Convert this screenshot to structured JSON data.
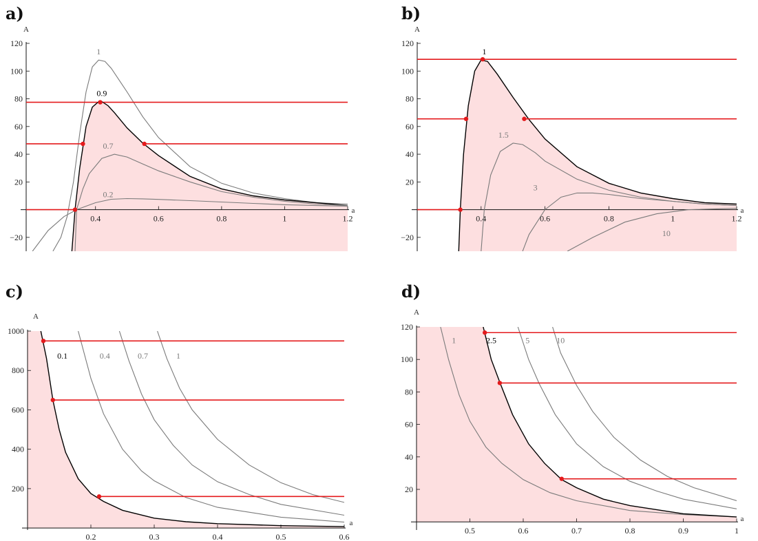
{
  "chart_data": [
    {
      "type": "line",
      "panel_label": "a)",
      "xlabel": "a",
      "ylabel": "A",
      "xlim": [
        0.18,
        1.2
      ],
      "ylim": [
        -30,
        120
      ],
      "xticks": [
        0.4,
        0.6,
        0.8,
        1,
        1.2
      ],
      "xtick_labels": [
        "0.4",
        "0.6",
        "0.8",
        "1",
        "1.2"
      ],
      "yticks": [
        -20,
        20,
        40,
        60,
        80,
        100,
        120
      ],
      "ytick_labels": [
        "−20",
        "20",
        "40",
        "60",
        "80",
        "100",
        "120"
      ],
      "shaded_region_under": "0.9",
      "series": [
        {
          "name": "1",
          "highlight": false,
          "x": [
            0.265,
            0.29,
            0.31,
            0.33,
            0.35,
            0.37,
            0.39,
            0.41,
            0.43,
            0.45,
            0.5,
            0.55,
            0.6,
            0.7,
            0.8,
            0.9,
            1.0,
            1.1,
            1.2
          ],
          "y": [
            -30,
            -20,
            -5,
            20,
            55,
            85,
            103,
            108,
            107,
            102,
            85,
            67,
            52,
            31,
            19,
            12,
            8,
            5,
            4
          ]
        },
        {
          "name": "0.9",
          "highlight": true,
          "x": [
            0.325,
            0.335,
            0.35,
            0.37,
            0.39,
            0.41,
            0.42,
            0.44,
            0.46,
            0.5,
            0.55,
            0.6,
            0.7,
            0.8,
            0.9,
            1.0,
            1.1,
            1.2
          ],
          "y": [
            -30,
            0,
            30,
            60,
            74,
            78,
            78,
            75,
            70,
            59,
            48,
            39,
            24,
            15,
            10,
            7,
            5,
            3
          ]
        },
        {
          "name": "0.7",
          "highlight": false,
          "x": [
            0.335,
            0.34,
            0.36,
            0.38,
            0.42,
            0.46,
            0.5,
            0.55,
            0.6,
            0.7,
            0.8,
            0.9,
            1.0,
            1.1,
            1.2
          ],
          "y": [
            -30,
            0,
            15,
            26,
            37,
            40,
            38,
            33,
            28,
            20,
            13,
            9,
            6,
            4,
            3
          ]
        },
        {
          "name": "0.2",
          "highlight": false,
          "x": [
            0.2,
            0.25,
            0.3,
            0.34,
            0.4,
            0.45,
            0.5,
            0.55,
            0.6,
            0.7,
            0.8,
            0.9,
            1.0,
            1.1,
            1.2
          ],
          "y": [
            -30,
            -15,
            -5,
            0,
            5,
            7.5,
            8,
            7.8,
            7.4,
            6.5,
            5.5,
            4.5,
            3.6,
            3,
            2.5
          ]
        }
      ],
      "curve_labels": [
        {
          "text": "1",
          "x": 0.41,
          "y": 112,
          "color": "#7a7a7a"
        },
        {
          "text": "0.9",
          "x": 0.42,
          "y": 82,
          "color": "#000000"
        },
        {
          "text": "0.7",
          "x": 0.44,
          "y": 44,
          "color": "#7a7a7a"
        },
        {
          "text": "0.2",
          "x": 0.44,
          "y": 9,
          "color": "#7a7a7a"
        }
      ],
      "hlines": [
        {
          "y": 77.5,
          "x_start": 0.18,
          "x_end": 1.2,
          "gap": [
            0.405,
            0.425
          ]
        },
        {
          "y": 47.5,
          "x_start": 0.18,
          "x_end": 1.2,
          "gap": [
            0.36,
            0.555
          ]
        },
        {
          "y": 0,
          "x_start": 0.18,
          "x_end": 0.335,
          "gap": null
        }
      ],
      "points": [
        {
          "x": 0.415,
          "y": 77.5
        },
        {
          "x": 0.36,
          "y": 47.5
        },
        {
          "x": 0.555,
          "y": 47.5
        },
        {
          "x": 0.335,
          "y": 0
        }
      ]
    },
    {
      "type": "line",
      "panel_label": "b)",
      "xlabel": "a",
      "ylabel": "A",
      "xlim": [
        0.2,
        1.2
      ],
      "ylim": [
        -30,
        120
      ],
      "xticks": [
        0.4,
        0.6,
        0.8,
        1,
        1.2
      ],
      "xtick_labels": [
        "0.4",
        "0.6",
        "0.8",
        "1",
        "1.2"
      ],
      "yticks": [
        -20,
        20,
        40,
        60,
        80,
        100,
        120
      ],
      "ytick_labels": [
        "−20",
        "20",
        "40",
        "60",
        "80",
        "100",
        "120"
      ],
      "shaded_region_under": "1",
      "series": [
        {
          "name": "1",
          "highlight": true,
          "x": [
            0.33,
            0.335,
            0.345,
            0.36,
            0.38,
            0.4,
            0.42,
            0.45,
            0.5,
            0.55,
            0.6,
            0.7,
            0.8,
            0.9,
            1.0,
            1.1,
            1.2
          ],
          "y": [
            -30,
            0,
            40,
            75,
            100,
            108,
            107,
            98,
            81,
            65,
            51,
            31,
            19,
            12,
            8,
            5,
            4
          ]
        },
        {
          "name": "1.5",
          "highlight": false,
          "x": [
            0.4,
            0.41,
            0.43,
            0.46,
            0.5,
            0.53,
            0.57,
            0.6,
            0.7,
            0.8,
            0.9,
            1.0,
            1.1,
            1.2
          ],
          "y": [
            -30,
            0,
            25,
            42,
            48,
            47,
            41,
            35,
            22,
            14,
            9,
            6,
            4,
            3
          ]
        },
        {
          "name": "3",
          "highlight": false,
          "x": [
            0.53,
            0.55,
            0.6,
            0.65,
            0.7,
            0.75,
            0.8,
            0.9,
            1.0,
            1.1,
            1.2
          ],
          "y": [
            -30,
            -18,
            0,
            9,
            12,
            12,
            11,
            8,
            6,
            4,
            3
          ]
        },
        {
          "name": "10",
          "highlight": false,
          "x": [
            0.67,
            0.75,
            0.85,
            0.95,
            1.05,
            1.2
          ],
          "y": [
            -30,
            -20,
            -9,
            -3,
            0,
            1
          ]
        }
      ],
      "curve_labels": [
        {
          "text": "1",
          "x": 0.41,
          "y": 112,
          "color": "#000000"
        },
        {
          "text": "1.5",
          "x": 0.47,
          "y": 52,
          "color": "#7a7a7a"
        },
        {
          "text": "3",
          "x": 0.57,
          "y": 14,
          "color": "#7a7a7a"
        },
        {
          "text": "10",
          "x": 0.98,
          "y": -19,
          "color": "#7a7a7a"
        }
      ],
      "hlines": [
        {
          "y": 108.5,
          "x_start": 0.2,
          "x_end": 1.2,
          "gap": null
        },
        {
          "y": 65.5,
          "x_start": 0.2,
          "x_end": 1.2,
          "gap": [
            0.353,
            0.535
          ]
        },
        {
          "y": 0,
          "x_start": 0.2,
          "x_end": 0.335,
          "gap": null
        }
      ],
      "points": [
        {
          "x": 0.405,
          "y": 108.5
        },
        {
          "x": 0.353,
          "y": 65.5
        },
        {
          "x": 0.535,
          "y": 65.5
        },
        {
          "x": 0.335,
          "y": 0
        }
      ]
    },
    {
      "type": "line",
      "panel_label": "c)",
      "xlabel": "a",
      "ylabel": "A",
      "xlim": [
        0.1,
        0.6
      ],
      "ylim": [
        -10,
        1000
      ],
      "xticks": [
        0.2,
        0.3,
        0.4,
        0.5,
        0.6
      ],
      "xtick_labels": [
        "0.2",
        "0.3",
        "0.4",
        "0.5",
        "0.6"
      ],
      "yticks": [
        200,
        400,
        600,
        800,
        1000
      ],
      "ytick_labels": [
        "200",
        "400",
        "600",
        "800",
        "1000"
      ],
      "shaded_region_under": "0.1",
      "series": [
        {
          "name": "0.1",
          "highlight": true,
          "x": [
            0.121,
            0.13,
            0.14,
            0.15,
            0.16,
            0.18,
            0.2,
            0.22,
            0.25,
            0.3,
            0.35,
            0.4,
            0.5,
            0.6
          ],
          "y": [
            1000,
            860,
            650,
            500,
            385,
            250,
            175,
            135,
            90,
            50,
            32,
            22,
            12,
            7
          ]
        },
        {
          "name": "0.4",
          "highlight": false,
          "x": [
            0.18,
            0.2,
            0.22,
            0.25,
            0.28,
            0.3,
            0.35,
            0.4,
            0.5,
            0.6
          ],
          "y": [
            1000,
            760,
            580,
            400,
            290,
            240,
            155,
            105,
            55,
            30
          ]
        },
        {
          "name": "0.7",
          "highlight": false,
          "x": [
            0.245,
            0.26,
            0.28,
            0.3,
            0.33,
            0.36,
            0.4,
            0.45,
            0.5,
            0.6
          ],
          "y": [
            1000,
            850,
            680,
            550,
            420,
            320,
            235,
            170,
            120,
            65
          ]
        },
        {
          "name": "1",
          "highlight": false,
          "x": [
            0.305,
            0.32,
            0.34,
            0.36,
            0.4,
            0.45,
            0.5,
            0.55,
            0.6
          ],
          "y": [
            1000,
            860,
            710,
            600,
            450,
            320,
            230,
            170,
            130
          ]
        }
      ],
      "curve_labels": [
        {
          "text": "0.1",
          "x": 0.155,
          "y": 860,
          "color": "#000000"
        },
        {
          "text": "0.4",
          "x": 0.222,
          "y": 860,
          "color": "#7a7a7a"
        },
        {
          "text": "0.7",
          "x": 0.282,
          "y": 860,
          "color": "#7a7a7a"
        },
        {
          "text": "1",
          "x": 0.338,
          "y": 860,
          "color": "#7a7a7a"
        }
      ],
      "hlines": [
        {
          "y": 950,
          "x_start": 0.125,
          "x_end": 0.6,
          "gap": null
        },
        {
          "y": 650,
          "x_start": 0.14,
          "x_end": 0.6,
          "gap": null
        },
        {
          "y": 160,
          "x_start": 0.213,
          "x_end": 0.6,
          "gap": null
        }
      ],
      "points": [
        {
          "x": 0.125,
          "y": 950
        },
        {
          "x": 0.14,
          "y": 650
        },
        {
          "x": 0.213,
          "y": 160
        }
      ]
    },
    {
      "type": "line",
      "panel_label": "d)",
      "xlabel": "a",
      "ylabel": "A",
      "xlim": [
        0.4,
        1.0
      ],
      "ylim": [
        -5,
        120
      ],
      "xticks": [
        0.5,
        0.6,
        0.7,
        0.8,
        0.9,
        1
      ],
      "xtick_labels": [
        "0.5",
        "0.6",
        "0.7",
        "0.8",
        "0.9",
        "1"
      ],
      "yticks": [
        20,
        40,
        60,
        80,
        100,
        120
      ],
      "ytick_labels": [
        "20",
        "40",
        "60",
        "80",
        "100",
        "120"
      ],
      "shaded_region_under": "2.5",
      "series": [
        {
          "name": "1",
          "highlight": false,
          "x": [
            0.445,
            0.46,
            0.48,
            0.5,
            0.53,
            0.56,
            0.6,
            0.65,
            0.7,
            0.8,
            0.9,
            1.0
          ],
          "y": [
            120,
            100,
            78,
            62,
            46,
            36,
            26,
            18,
            13,
            7,
            4.5,
            3
          ]
        },
        {
          "name": "2.5",
          "highlight": true,
          "x": [
            0.525,
            0.54,
            0.556,
            0.58,
            0.61,
            0.64,
            0.672,
            0.7,
            0.75,
            0.8,
            0.9,
            1.0
          ],
          "y": [
            120,
            100,
            86,
            66,
            48,
            36,
            26,
            21,
            14,
            10,
            5,
            3
          ]
        },
        {
          "name": "5",
          "highlight": false,
          "x": [
            0.59,
            0.61,
            0.63,
            0.66,
            0.7,
            0.75,
            0.8,
            0.85,
            0.9,
            1.0
          ],
          "y": [
            120,
            100,
            85,
            66,
            48,
            34,
            25,
            19,
            14,
            8
          ]
        },
        {
          "name": "10",
          "highlight": false,
          "x": [
            0.655,
            0.67,
            0.7,
            0.73,
            0.77,
            0.82,
            0.87,
            0.92,
            1.0
          ],
          "y": [
            120,
            104,
            84,
            68,
            52,
            38,
            28,
            21,
            13
          ]
        }
      ],
      "curve_labels": [
        {
          "text": "1",
          "x": 0.47,
          "y": 110,
          "color": "#7a7a7a"
        },
        {
          "text": "2.5",
          "x": 0.54,
          "y": 110,
          "color": "#000000"
        },
        {
          "text": "5",
          "x": 0.608,
          "y": 110,
          "color": "#7a7a7a"
        },
        {
          "text": "10",
          "x": 0.67,
          "y": 110,
          "color": "#7a7a7a"
        }
      ],
      "hlines": [
        {
          "y": 116.5,
          "x_start": 0.528,
          "x_end": 1.0,
          "gap": null
        },
        {
          "y": 85.5,
          "x_start": 0.556,
          "x_end": 1.0,
          "gap": null
        },
        {
          "y": 26.5,
          "x_start": 0.672,
          "x_end": 1.0,
          "gap": null
        }
      ],
      "points": [
        {
          "x": 0.528,
          "y": 116.5
        },
        {
          "x": 0.556,
          "y": 85.5
        },
        {
          "x": 0.672,
          "y": 26.5
        }
      ]
    }
  ],
  "colors": {
    "highlight_curve": "#000000",
    "other_curves": "#7a7a7a",
    "threshold_lines": "#e41a1c",
    "shading": "#fddfe0"
  }
}
